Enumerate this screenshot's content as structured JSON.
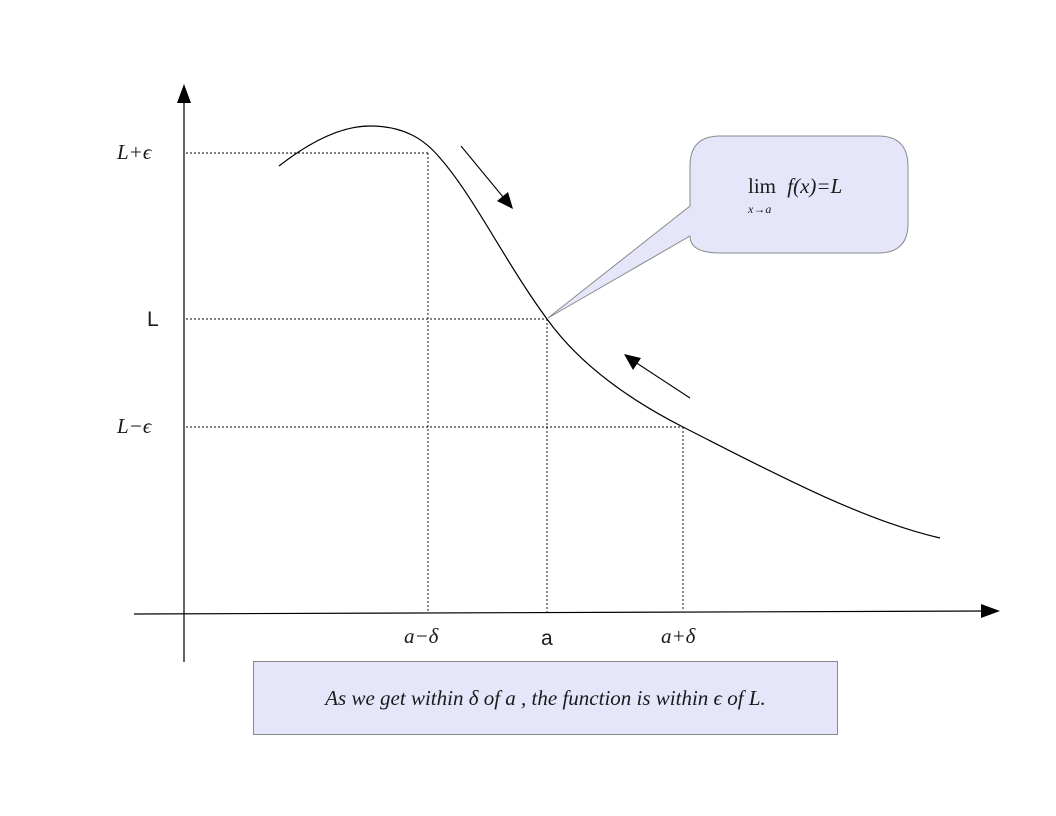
{
  "labels": {
    "y_upper": "L+ϵ",
    "y_mid": "L",
    "y_lower": "L−ϵ",
    "x_left": "a−δ",
    "x_mid": "a",
    "x_right": "a+δ"
  },
  "callout": {
    "lim": "lim",
    "expr": "f(x)=L",
    "sub": "x→a"
  },
  "caption": "As we get within δ of a , the function is within ϵ of L.",
  "colors": {
    "fill": "#e6e6fb",
    "stroke": "#8a8a8a",
    "line": "#000000"
  }
}
